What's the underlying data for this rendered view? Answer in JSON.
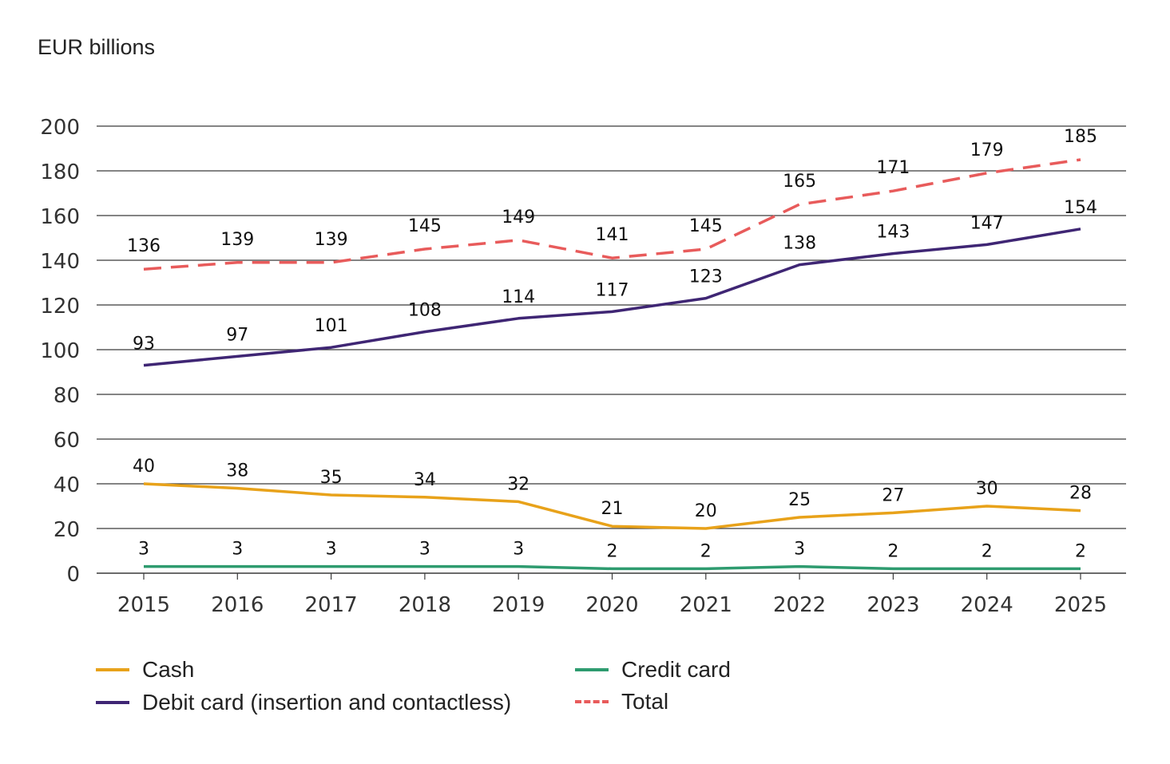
{
  "chart_data": {
    "type": "line",
    "ylabel": "EUR billions",
    "x": [
      "2015",
      "2016",
      "2017",
      "2018",
      "2019",
      "2020",
      "2021",
      "2022",
      "2023",
      "2024",
      "2025"
    ],
    "ylim": [
      0,
      200
    ],
    "yticks": [
      0,
      20,
      40,
      60,
      80,
      100,
      120,
      140,
      160,
      180,
      200
    ],
    "grid": true,
    "legend_position": "bottom-left",
    "series": [
      {
        "name": "Cash",
        "color": "#E8A21A",
        "style": "solid",
        "values": [
          40,
          38,
          35,
          34,
          32,
          21,
          20,
          25,
          27,
          30,
          28
        ]
      },
      {
        "name": "Debit card (insertion and contactless)",
        "color": "#3F2674",
        "style": "solid",
        "values": [
          93,
          97,
          101,
          108,
          114,
          117,
          123,
          138,
          143,
          147,
          154
        ]
      },
      {
        "name": "Credit card",
        "color": "#2E9B6F",
        "style": "solid",
        "values": [
          3,
          3,
          3,
          3,
          3,
          2,
          2,
          3,
          2,
          2,
          2
        ]
      },
      {
        "name": "Total",
        "color": "#E85B5B",
        "style": "dashed",
        "values": [
          136,
          139,
          139,
          145,
          149,
          141,
          145,
          165,
          171,
          179,
          185
        ]
      }
    ]
  }
}
